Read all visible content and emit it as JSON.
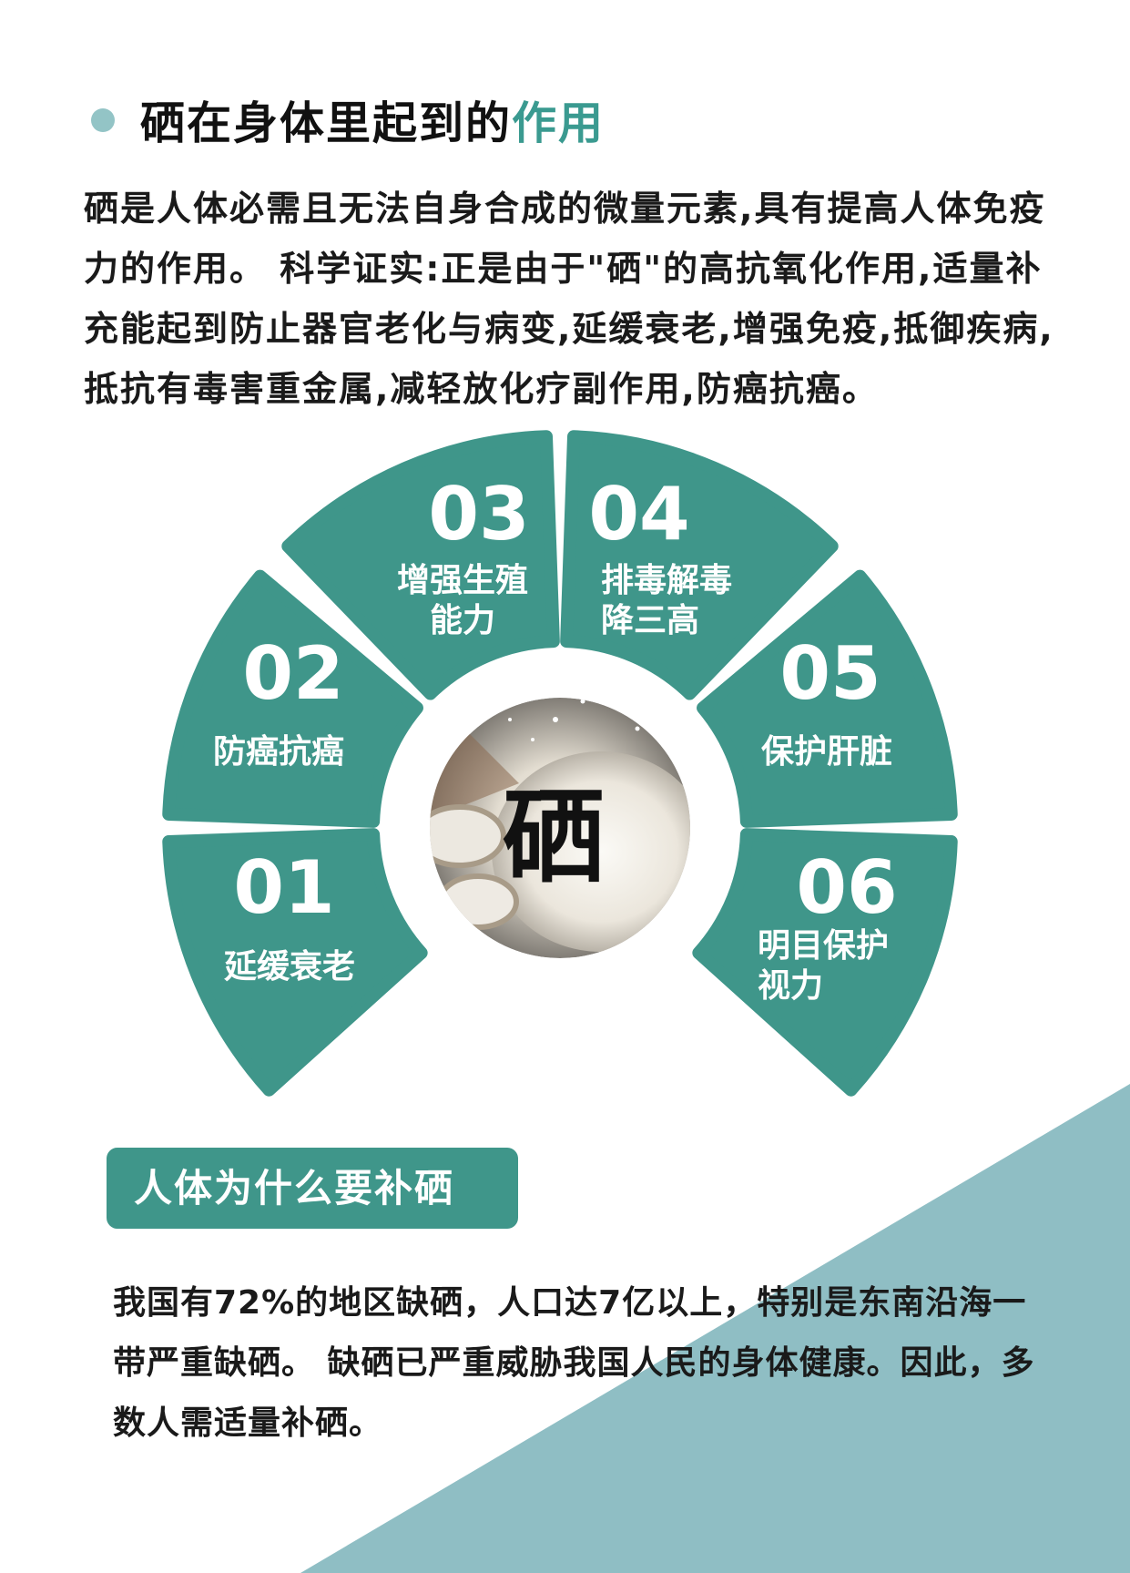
{
  "title": {
    "main": "硒在身体里起到的",
    "accent": "作用"
  },
  "intro": "硒是人体必需且无法自身合成的微量元素,具有提高人体免疫力的作用。 科学证实:正是由于\"硒\"的高抗氧化作用,适量补充能起到防止器官老化与病变,延缓衰老,增强免疫,抵御疾病,抵抗有毒害重金属,减轻放化疗副作用,防癌抗癌。",
  "center_label": "硒",
  "segments": [
    {
      "number": "01",
      "lines": [
        "延缓衰老"
      ]
    },
    {
      "number": "02",
      "lines": [
        "防癌抗癌"
      ]
    },
    {
      "number": "03",
      "lines": [
        "增强生殖",
        "能力"
      ]
    },
    {
      "number": "04",
      "lines": [
        "排毒解毒",
        "降三高"
      ]
    },
    {
      "number": "05",
      "lines": [
        "保护肝脏"
      ]
    },
    {
      "number": "06",
      "lines": [
        "明目保护",
        "视力"
      ]
    }
  ],
  "section2_title": "人体为什么要补硒",
  "section2_body": "我国有72%的地区缺硒，人口达7亿以上，特别是东南沿海一带严重缺硒。 缺硒已严重威胁我国人民的身体健康。因此，多数人需适量补硒。",
  "colors": {
    "segment": "#3f968a",
    "dot": "#93c4c6",
    "accent_text": "#3a9a90",
    "triangle": "#8fbec4"
  }
}
